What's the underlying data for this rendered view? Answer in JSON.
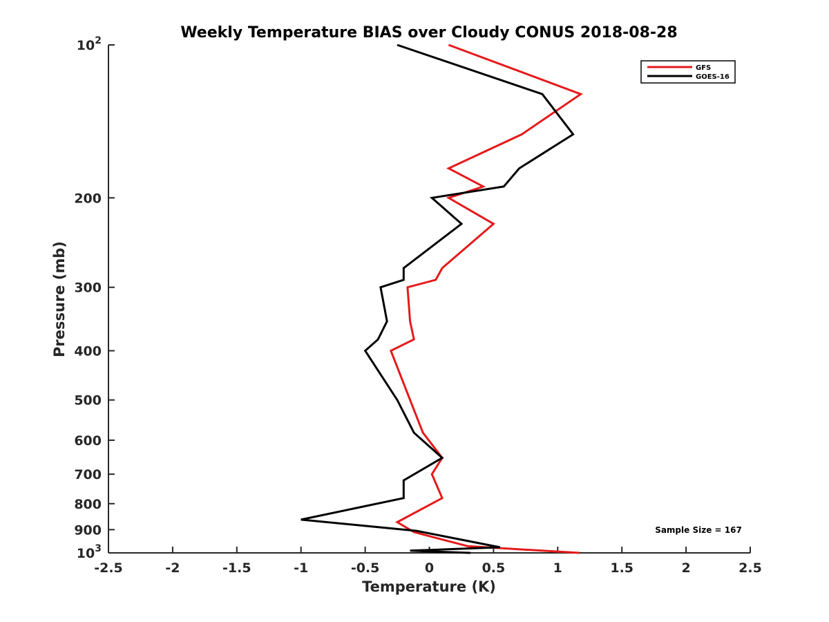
{
  "chart_data": {
    "type": "line",
    "title": "Weekly Temperature BIAS over Cloudy CONUS 2018-08-28",
    "xlabel": "Temperature (K)",
    "ylabel": "Pressure (mb)",
    "xlim": [
      -2.5,
      2.5
    ],
    "ylim": [
      1000,
      100
    ],
    "y_scale": "log",
    "y_reversed": true,
    "grid": false,
    "x_ticks": [
      "-2.5",
      "-2",
      "-1.5",
      "-1",
      "-0.5",
      "0",
      "0.5",
      "1",
      "1.5",
      "2",
      "2.5"
    ],
    "y_ticks": [
      {
        "value": 100,
        "label": "10",
        "exp": "2"
      },
      {
        "value": 200,
        "label": "200"
      },
      {
        "value": 300,
        "label": "300"
      },
      {
        "value": 400,
        "label": "400"
      },
      {
        "value": 500,
        "label": "500"
      },
      {
        "value": 600,
        "label": "600"
      },
      {
        "value": 700,
        "label": "700"
      },
      {
        "value": 800,
        "label": "800"
      },
      {
        "value": 900,
        "label": "900"
      },
      {
        "value": 1000,
        "label": "10",
        "exp": "3"
      }
    ],
    "legend": {
      "position": "top-right"
    },
    "annotation": "Sample Size = 167",
    "series": [
      {
        "name": "GFS",
        "color": "#e41a1c",
        "points": [
          [
            0.15,
            100
          ],
          [
            1.18,
            125
          ],
          [
            0.72,
            150
          ],
          [
            0.15,
            175
          ],
          [
            0.42,
            190
          ],
          [
            0.15,
            200
          ],
          [
            0.5,
            225
          ],
          [
            0.1,
            275
          ],
          [
            0.05,
            290
          ],
          [
            -0.17,
            300
          ],
          [
            -0.15,
            350
          ],
          [
            -0.12,
            380
          ],
          [
            -0.3,
            400
          ],
          [
            -0.15,
            500
          ],
          [
            -0.05,
            580
          ],
          [
            0.1,
            650
          ],
          [
            0.02,
            700
          ],
          [
            0.1,
            780
          ],
          [
            -0.25,
            870
          ],
          [
            -0.12,
            910
          ],
          [
            0.3,
            970
          ],
          [
            1.17,
            1000
          ]
        ]
      },
      {
        "name": "GOES-16",
        "color": "#000000",
        "points": [
          [
            -0.25,
            100
          ],
          [
            0.88,
            125
          ],
          [
            1.12,
            150
          ],
          [
            0.7,
            175
          ],
          [
            0.58,
            190
          ],
          [
            0.02,
            200
          ],
          [
            0.25,
            225
          ],
          [
            -0.2,
            275
          ],
          [
            -0.2,
            290
          ],
          [
            -0.38,
            300
          ],
          [
            -0.33,
            350
          ],
          [
            -0.4,
            380
          ],
          [
            -0.5,
            400
          ],
          [
            -0.25,
            500
          ],
          [
            -0.12,
            580
          ],
          [
            0.1,
            650
          ],
          [
            -0.2,
            720
          ],
          [
            -0.2,
            780
          ],
          [
            -1.0,
            860
          ],
          [
            -0.1,
            905
          ],
          [
            0.55,
            975
          ],
          [
            -0.15,
            990
          ],
          [
            0.32,
            1000
          ]
        ]
      }
    ]
  }
}
